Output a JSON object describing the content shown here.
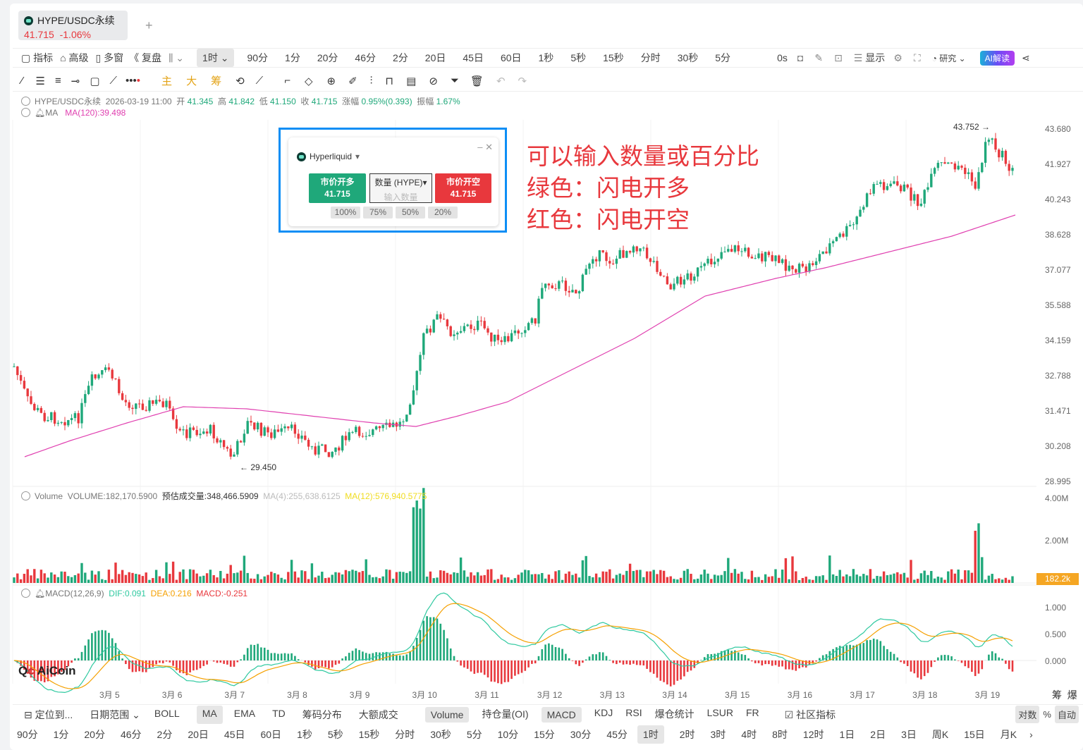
{
  "tab": {
    "symbol": "HYPE/USDC永续",
    "price": "41.715",
    "change": "-1.06%",
    "add": "+"
  },
  "toolbar1": {
    "left": [
      "指标",
      "高级",
      "多窗",
      "复盘"
    ],
    "active": "1时",
    "intervals": [
      "90分",
      "1分",
      "20分",
      "46分",
      "2分",
      "20日",
      "45日",
      "60日",
      "1秒",
      "5秒",
      "15秒",
      "分时",
      "30秒",
      "5分"
    ],
    "countdown": "0s",
    "display": "显示",
    "research": "研究",
    "ai": "AI解读"
  },
  "toolbar2": {
    "tools_mid": [
      "主",
      "大",
      "筹"
    ]
  },
  "info": {
    "symbol": "HYPE/USDC永续",
    "datetime": "2026-03-19 11:00",
    "open_l": "开",
    "open": "41.345",
    "high_l": "高",
    "high": "41.842",
    "low_l": "低",
    "low": "41.150",
    "close_l": "收",
    "close": "41.715",
    "chg_l": "涨幅",
    "chg": "0.95%(0.393)",
    "amp_l": "振幅",
    "amp": "1.67%",
    "ma_label": "MA",
    "ma120": "MA(120):39.498"
  },
  "price_axis": [
    "43.680",
    "41.927",
    "40.243",
    "38.628",
    "37.077",
    "35.588",
    "34.159",
    "32.788",
    "31.471",
    "30.208",
    "28.995"
  ],
  "high_mark": "43.752",
  "low_mark": "29.450",
  "volume": {
    "title": "Volume",
    "vol": "VOLUME:182,170.5900",
    "est": "预估成交量:348,466.5909",
    "ma4": "MA(4):255,638.6125",
    "ma12": "MA(12):576,940.5775",
    "axis": [
      "4.00M",
      "2.00M"
    ],
    "current": "182.2k"
  },
  "macd": {
    "title": "MACD(12,26,9)",
    "dif": "DIF:0.091",
    "dea": "DEA:0.216",
    "macd": "MACD:-0.251",
    "axis": [
      "1.000",
      "0.500",
      "0.000"
    ]
  },
  "dates": [
    "3月 5",
    "3月 6",
    "3月 7",
    "3月 8",
    "3月 9",
    "3月 10",
    "3月 11",
    "3月 12",
    "3月 13",
    "3月 14",
    "3月 15",
    "3月 16",
    "3月 17",
    "3月 18",
    "3月 19"
  ],
  "corner": [
    "筹",
    "爆"
  ],
  "trade": {
    "exchange": "Hyperliquid",
    "long_label": "市价开多",
    "long_price": "41.715",
    "qty_label": "数量 (HYPE)",
    "qty_placeholder": "输入数量",
    "short_label": "市价开空",
    "short_price": "41.715",
    "pcts": [
      "100%",
      "75%",
      "50%",
      "20%"
    ]
  },
  "notes": [
    "可以输入数量或百分比",
    "绿色：闪电开多",
    "红色：闪电开空"
  ],
  "bottom1": {
    "locate": "定位到...",
    "range": "日期范围",
    "indicators": [
      "BOLL",
      "MA",
      "EMA",
      "TD",
      "筹码分布",
      "大额成交"
    ],
    "sub": [
      "Volume",
      "持仓量(OI)",
      "MACD",
      "KDJ",
      "RSI",
      "爆仓统计",
      "LSUR",
      "FR"
    ],
    "community": "社区指标",
    "log": "对数",
    "pct": "%",
    "auto": "自动"
  },
  "bottom2": {
    "intervals": [
      "90分",
      "1分",
      "20分",
      "46分",
      "2分",
      "20日",
      "45日",
      "60日",
      "1秒",
      "5秒",
      "15秒",
      "分时",
      "30秒",
      "5分",
      "10分",
      "15分",
      "30分",
      "45分",
      "1时",
      "2时",
      "3时",
      "4时",
      "8时",
      "12时",
      "1日",
      "2日",
      "3日",
      "周K",
      "15日",
      "月K"
    ],
    "active": "1时"
  },
  "watermark": "AiCoin",
  "colors": {
    "up": "#1fa87a",
    "down": "#e8383d",
    "ma": "#e040b0",
    "accent": "#0d8ef5"
  }
}
